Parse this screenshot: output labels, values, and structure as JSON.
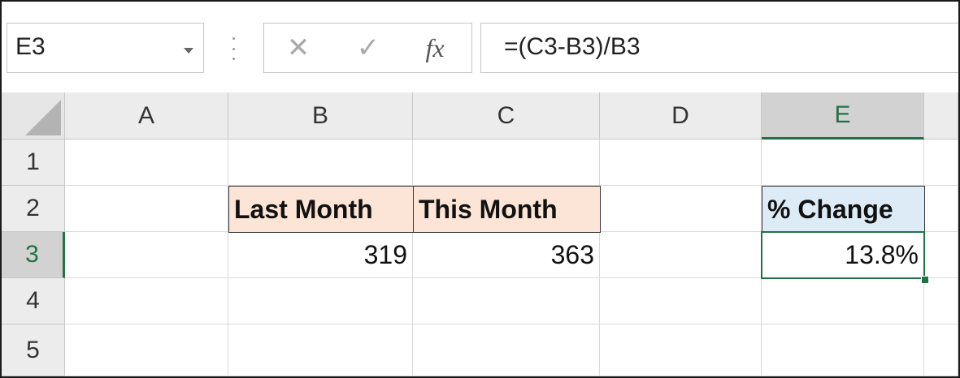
{
  "formula_bar": {
    "name_box": "E3",
    "cancel_icon": "✕",
    "enter_icon": "✓",
    "function_icon": "fx",
    "formula": "=(C3-B3)/B3"
  },
  "columns": [
    "A",
    "B",
    "C",
    "D",
    "E"
  ],
  "rows": [
    "1",
    "2",
    "3",
    "4",
    "5"
  ],
  "selected_cell": "E3",
  "cells": {
    "B2": "Last Month",
    "C2": "This Month",
    "E2": "% Change",
    "B3": "319",
    "C3": "363",
    "E3": "13.8%"
  },
  "colors": {
    "accent": "#217346",
    "header_peach": "#fce4d6",
    "header_blue": "#ddebf7"
  }
}
